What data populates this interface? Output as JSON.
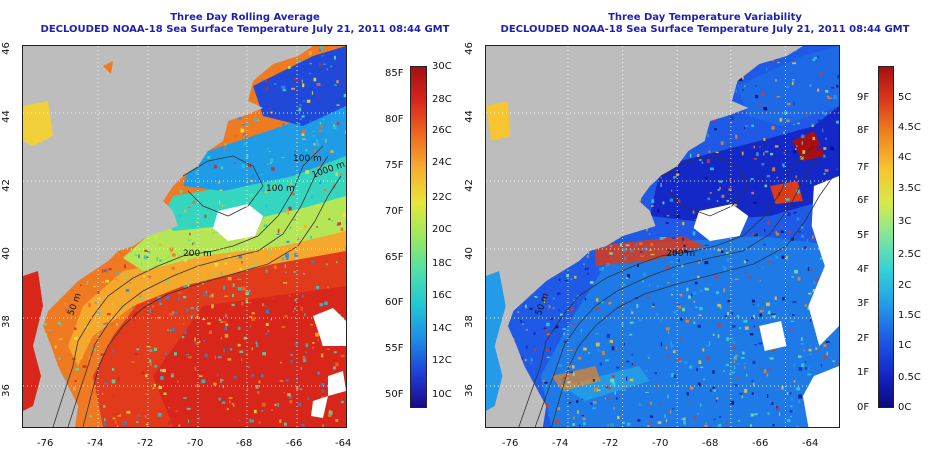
{
  "panels": [
    {
      "id": "left",
      "title_line1": "Three Day Rolling Average",
      "title_line2": "DECLOUDED NOAA-18 Sea Surface Temperature July 21, 2011 08:44 GMT",
      "contour_labels": [
        "100 m",
        "100 m",
        "1000 m",
        "200 m",
        "50 m"
      ],
      "colorbar": {
        "fahrenheit": [
          "85F",
          "80F",
          "75F",
          "70F",
          "65F",
          "60F",
          "55F",
          "50F"
        ],
        "celsius": [
          "30C",
          "28C",
          "26C",
          "24C",
          "22C",
          "20C",
          "18C",
          "16C",
          "14C",
          "12C",
          "10C"
        ],
        "colors": [
          "#1a0a8c",
          "#1f3fd9",
          "#1e8ce6",
          "#22c7d6",
          "#4fe0a8",
          "#9be860",
          "#e6e63a",
          "#f5b030",
          "#ee6a1e",
          "#d8261a",
          "#a50f12"
        ]
      }
    },
    {
      "id": "right",
      "title_line1": "Three Day Temperature Variability",
      "title_line2": "DECLOUDED NOAA-18 Sea Surface Temperature July 21, 2011 08:44 GMT",
      "contour_labels": [
        "200 m",
        "50 m"
      ],
      "colorbar": {
        "fahrenheit": [
          "9F",
          "8F",
          "7F",
          "6F",
          "5F",
          "4F",
          "3F",
          "2F",
          "1F",
          "0F"
        ],
        "celsius": [
          "5C",
          "4.5C",
          "4C",
          "3.5C",
          "3C",
          "2.5C",
          "2C",
          "1.5C",
          "1C",
          "0.5C",
          "0C"
        ],
        "colors": [
          "#0a0a7a",
          "#1428c8",
          "#1e5ae6",
          "#239be8",
          "#33d0d8",
          "#7ee6a0",
          "#d6ea4a",
          "#f7c52e",
          "#f0861e",
          "#dc3a18",
          "#a80f14"
        ]
      }
    }
  ],
  "axes": {
    "x_ticks": [
      "-76",
      "-74",
      "-72",
      "-70",
      "-68",
      "-66",
      "-64"
    ],
    "y_ticks": [
      "36",
      "38",
      "40",
      "42",
      "44",
      "46"
    ]
  },
  "colors": {
    "land": "#bdbdbd",
    "title": "#1f1fb0",
    "cloud": "#ffffff",
    "grid": "#ffffff"
  }
}
